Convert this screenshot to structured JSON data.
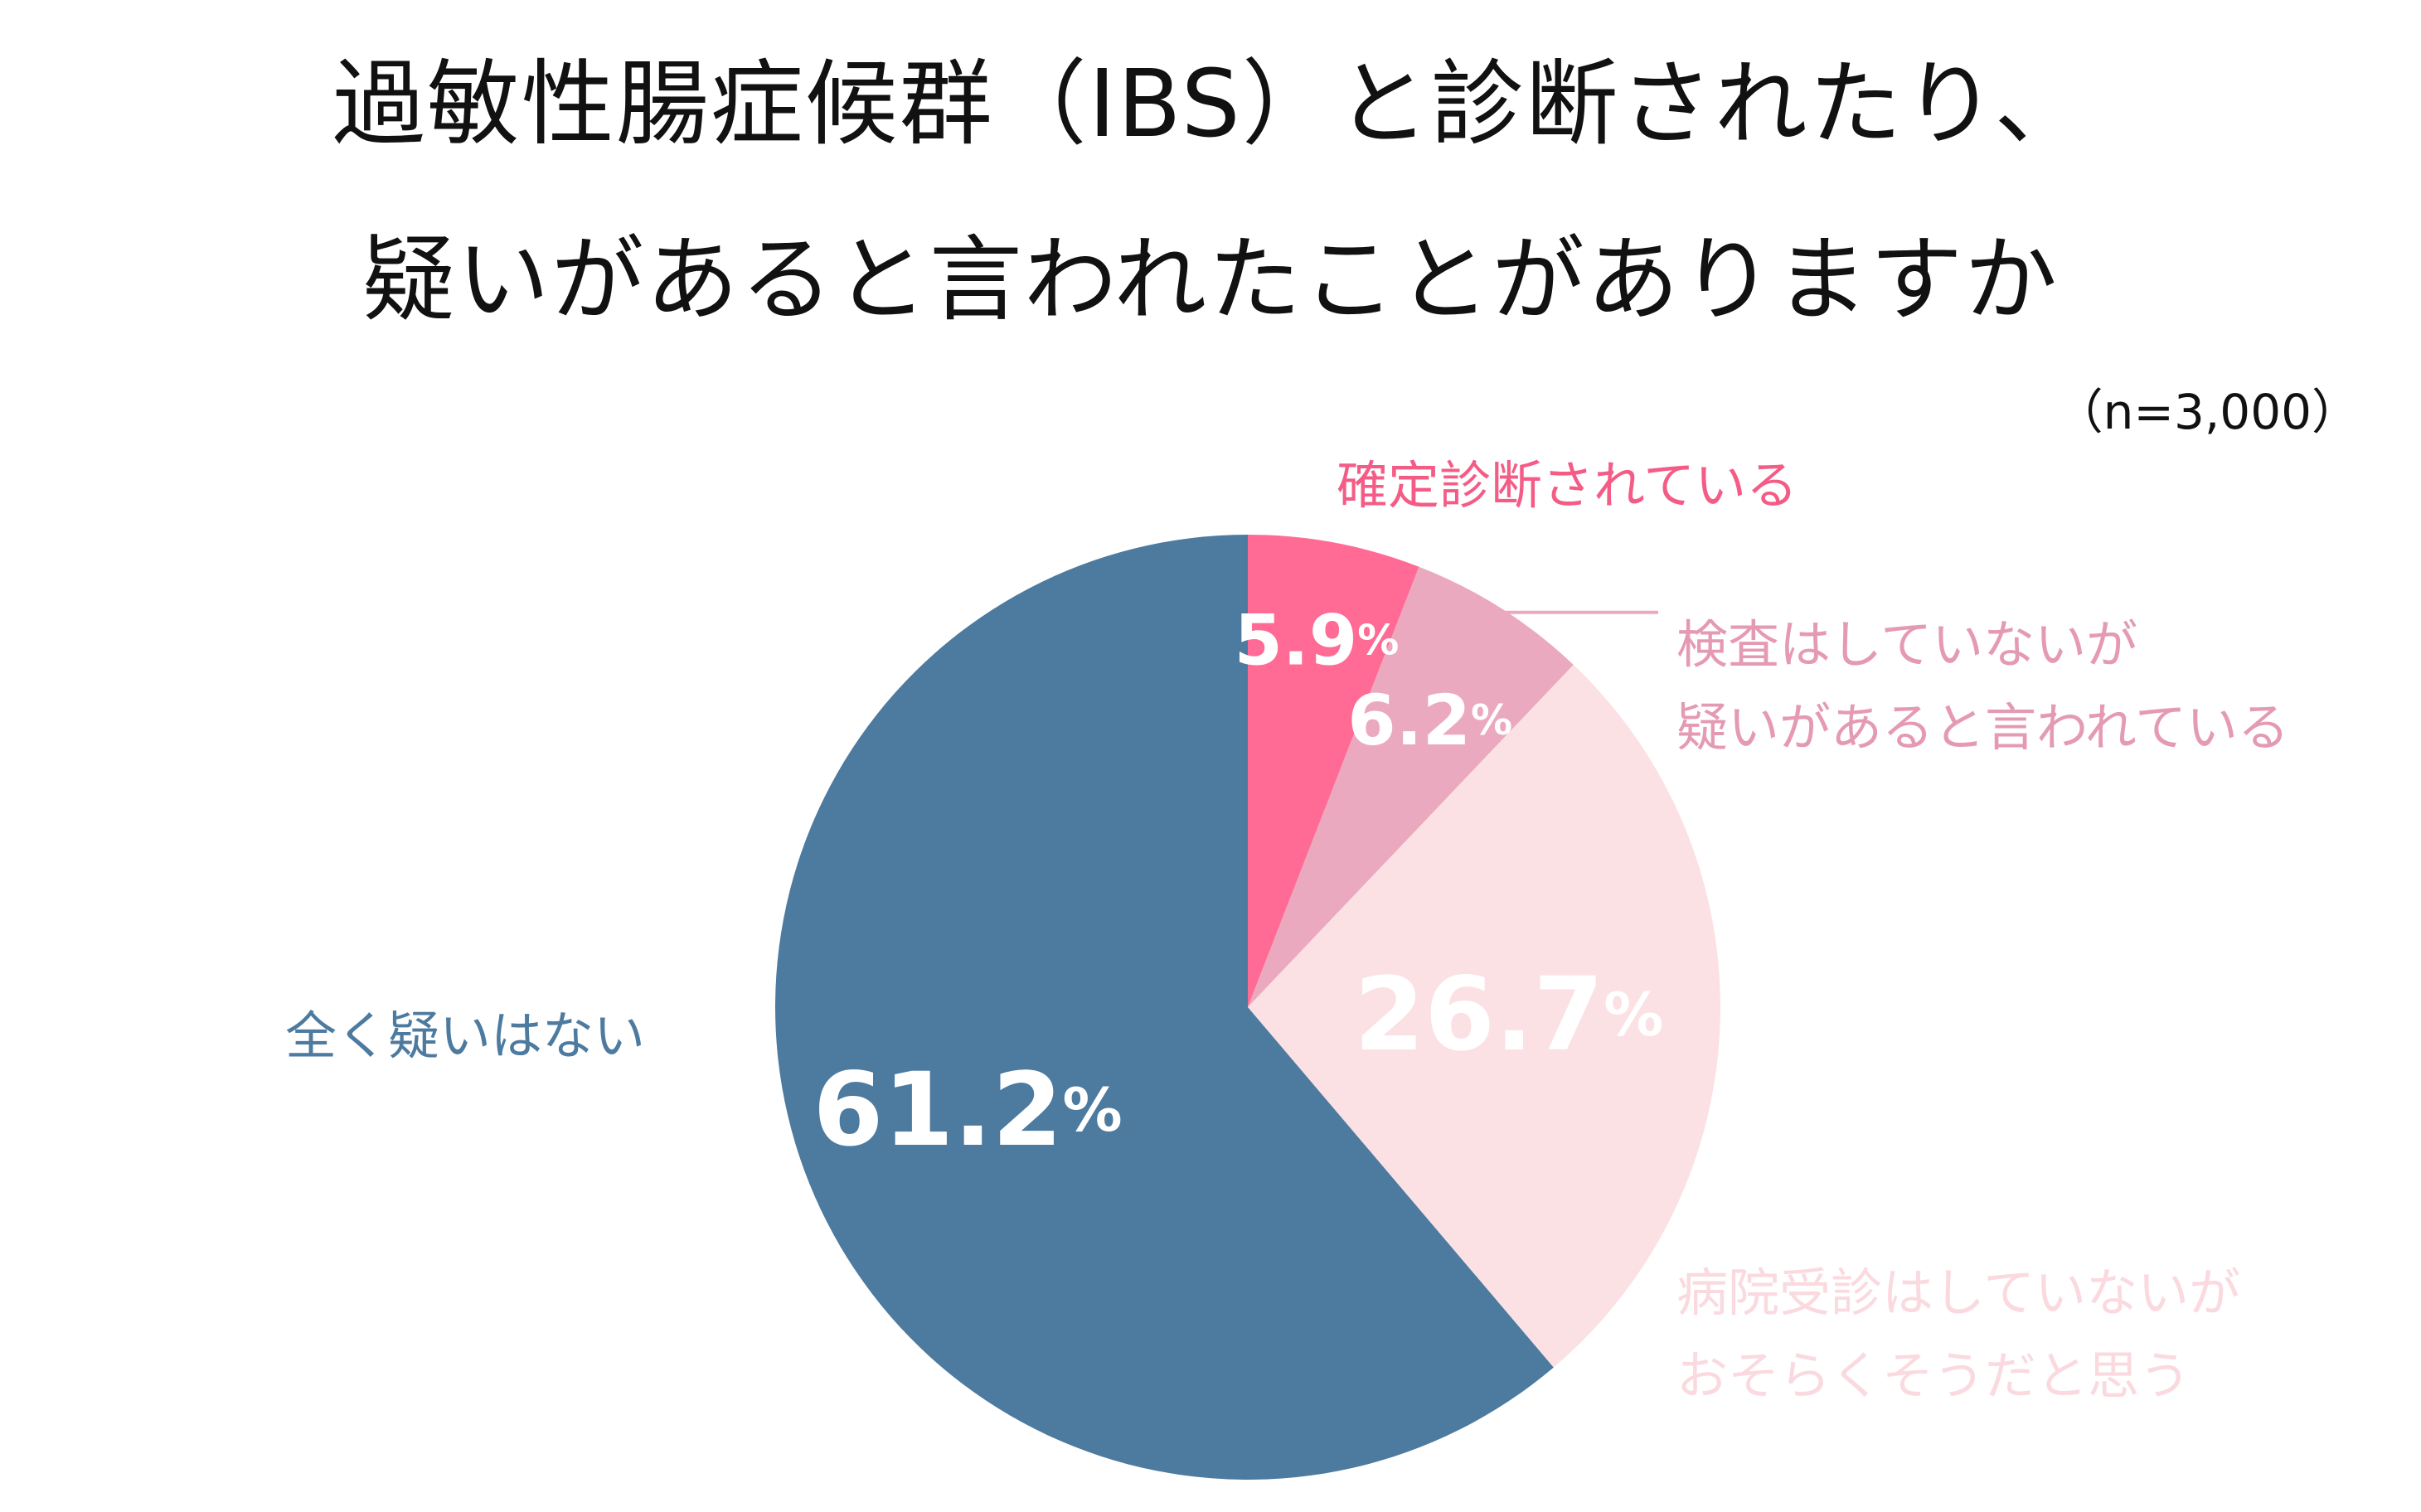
{
  "title_line1": "過敏性腸症候群（IBS）と診断されたり、",
  "title_line2": "疑いがあると言われたことがありますか",
  "sample_size": "（n=3,000）",
  "chart_data": {
    "type": "pie",
    "title": "過敏性腸症候群（IBS）と診断されたり、疑いがあると言われたことがありますか",
    "note": "（n=3,000）",
    "unit": "%",
    "slices": [
      {
        "label_lines": [
          "確定診断されている"
        ],
        "value": 5.9,
        "value_label": "5.9",
        "color": "#ff6b94",
        "label_color": "#f45c86"
      },
      {
        "label_lines": [
          "検査はしていないが",
          "疑いがあると言われている"
        ],
        "value": 6.2,
        "value_label": "6.2",
        "color": "#eba9bf",
        "label_color": "#e59ab3"
      },
      {
        "label_lines": [
          "病院受診はしていないが",
          "おそらくそうだと思う"
        ],
        "value": 26.7,
        "value_label": "26.7",
        "color": "#fbe1e4",
        "label_color": "#fadadf"
      },
      {
        "label_lines": [
          "全く疑いはない"
        ],
        "value": 61.2,
        "value_label": "61.2",
        "color": "#4d7a9f",
        "label_color": "#4d7a9f"
      }
    ]
  }
}
